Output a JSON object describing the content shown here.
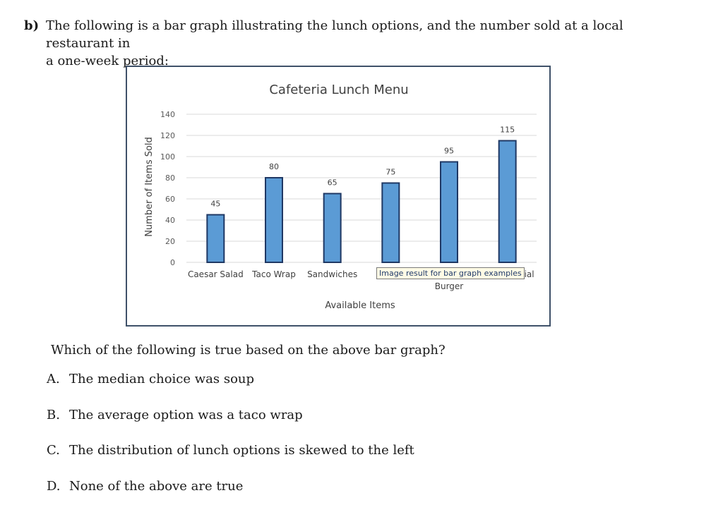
{
  "header": {
    "label": "b)",
    "line1": "The following is a bar graph illustrating the lunch options, and the number sold at a local restaurant in",
    "line2": "a one-week period:"
  },
  "chart_data": {
    "type": "bar",
    "title": "Cafeteria Lunch Menu",
    "xlabel": "Available Items",
    "ylabel": "Number of Items Sold",
    "ylim": [
      0,
      140
    ],
    "yticks": [
      0,
      20,
      40,
      60,
      80,
      100,
      120,
      140
    ],
    "grid": true,
    "categories": [
      "Caesar Salad",
      "Taco Wrap",
      "Sandwiches",
      "",
      "Burger",
      ""
    ],
    "values": [
      45,
      80,
      65,
      75,
      95,
      115
    ],
    "bar_color": "#5b9bd5",
    "bar_edge_color": "#1f3864"
  },
  "tooltip": {
    "text": "Image result for bar graph examples",
    "partial_label": "cial"
  },
  "question": {
    "prompt": "Which of the following is true based on the above bar graph?",
    "options": [
      {
        "letter": "A.",
        "text": "The median choice was soup"
      },
      {
        "letter": "B.",
        "text": "The average option was a taco wrap"
      },
      {
        "letter": "C.",
        "text": "The distribution of lunch options is skewed to the left"
      },
      {
        "letter": "D.",
        "text": "None of the above are true"
      }
    ]
  }
}
